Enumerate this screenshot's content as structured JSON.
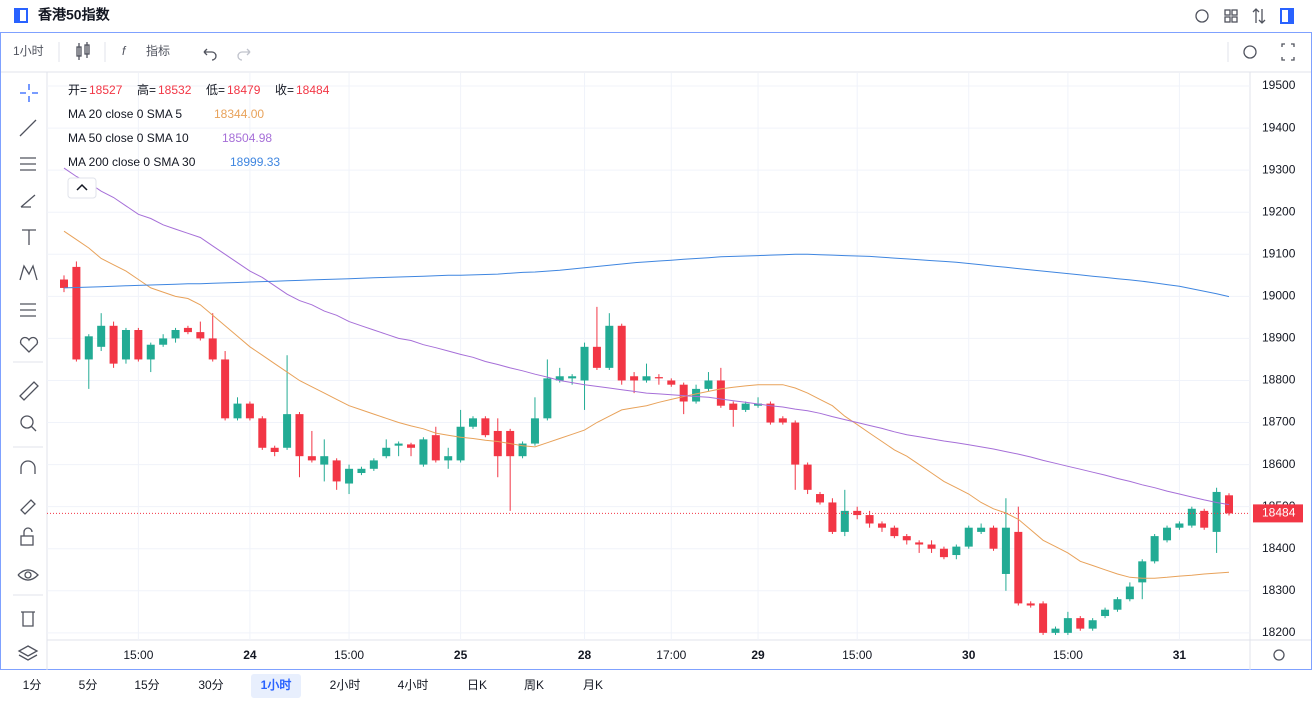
{
  "header": {
    "title": "香港50指数"
  },
  "toolbar": {
    "interval": "1小时",
    "indicators": "指标"
  },
  "intervals": [
    "1分",
    "5分",
    "15分",
    "30分",
    "1小时",
    "2小时",
    "4小时",
    "日K",
    "周K",
    "月K"
  ],
  "active_interval": 4,
  "chart_data": {
    "type": "candlestick",
    "legend_labels": [
      "开=",
      "高=",
      "低=",
      "收="
    ],
    "categories": [
      null,
      null,
      null,
      null,
      null,
      null,
      "15:00",
      null,
      null,
      null,
      null,
      null,
      null,
      null,
      null,
      "24",
      null,
      null,
      null,
      null,
      null,
      null,
      null,
      "15:00",
      null,
      null,
      null,
      null,
      null,
      null,
      null,
      null,
      "25",
      null,
      null,
      null,
      null,
      null,
      null,
      null,
      null,
      null,
      "28",
      null,
      null,
      null,
      null,
      null,
      null,
      "17:00",
      null,
      null,
      null,
      null,
      null,
      null,
      "29",
      null,
      null,
      null,
      null,
      null,
      null,
      null,
      "15:00",
      null,
      null,
      null,
      null,
      null,
      null,
      null,
      null,
      "30",
      null,
      null,
      null,
      null,
      null,
      null,
      null,
      "15:00",
      null,
      null,
      null,
      null,
      null,
      null,
      null,
      null,
      "31",
      null,
      null,
      null,
      null
    ],
    "open": [
      19040,
      19070,
      18850,
      18880,
      18930,
      18850,
      18920,
      18850,
      18885,
      18900,
      18925,
      18915,
      18900,
      18850,
      18710,
      18745,
      18710,
      18640,
      18640,
      18720,
      18620,
      18600,
      18610,
      18555,
      18580,
      18590,
      18620,
      18645,
      18648,
      18600,
      18670,
      18610,
      18610,
      18690,
      18710,
      18680,
      18680,
      18620,
      18650,
      18710,
      18800,
      18805,
      18800,
      18880,
      18830,
      18930,
      18810,
      18800,
      18808,
      18800,
      18790,
      18750,
      18780,
      18800,
      18745,
      18730,
      18740,
      18745,
      18710,
      18700,
      18600,
      18530,
      18510,
      18440,
      18490,
      18480,
      18460,
      18450,
      18430,
      18415,
      18410,
      18400,
      18385,
      18405,
      18440,
      18450,
      18340,
      18440,
      18270,
      18270,
      18200,
      18200,
      18235,
      18210,
      18240,
      18255,
      18280,
      18320,
      18370,
      18420,
      18450,
      18455,
      18490,
      18440,
      18527
    ],
    "high": [
      19050,
      19083,
      18910,
      18960,
      18940,
      18925,
      18925,
      18890,
      18910,
      18925,
      18930,
      18940,
      18960,
      18870,
      18760,
      18750,
      18715,
      18645,
      18860,
      18725,
      18680,
      18660,
      18615,
      18600,
      18595,
      18615,
      18660,
      18655,
      18652,
      18665,
      18690,
      18640,
      18730,
      18715,
      18715,
      18710,
      18685,
      18655,
      18760,
      18850,
      18830,
      18815,
      18890,
      18975,
      18960,
      18935,
      18820,
      18840,
      18815,
      18805,
      18795,
      18790,
      18820,
      18830,
      18750,
      18750,
      18760,
      18750,
      18715,
      18705,
      18605,
      18535,
      18520,
      18540,
      18500,
      18490,
      18465,
      18455,
      18435,
      18420,
      18420,
      18405,
      18410,
      18455,
      18460,
      18455,
      18520,
      18500,
      18275,
      18275,
      18215,
      18250,
      18240,
      18235,
      18260,
      18285,
      18320,
      18375,
      18435,
      18455,
      18465,
      18500,
      18495,
      18545,
      18532
    ],
    "low": [
      19010,
      18845,
      18780,
      18870,
      18830,
      18840,
      18845,
      18820,
      18880,
      18890,
      18910,
      18895,
      18845,
      18705,
      18705,
      18705,
      18635,
      18620,
      18635,
      18570,
      18605,
      18560,
      18540,
      18530,
      18575,
      18585,
      18615,
      18620,
      18620,
      18595,
      18605,
      18590,
      18605,
      18685,
      18665,
      18570,
      18490,
      18615,
      18645,
      18705,
      18795,
      18790,
      18730,
      18825,
      18825,
      18790,
      18770,
      18795,
      18790,
      18785,
      18720,
      18745,
      18775,
      18735,
      18690,
      18725,
      18735,
      18695,
      18695,
      18540,
      18530,
      18505,
      18435,
      18430,
      18470,
      18450,
      18440,
      18425,
      18410,
      18390,
      18390,
      18375,
      18375,
      18400,
      18435,
      18395,
      18300,
      18265,
      18260,
      18195,
      18195,
      18195,
      18205,
      18205,
      18235,
      18250,
      18275,
      18280,
      18365,
      18415,
      18445,
      18450,
      18445,
      18390,
      18479
    ],
    "close": [
      19020,
      18850,
      18905,
      18930,
      18840,
      18920,
      18850,
      18885,
      18900,
      18920,
      18915,
      18900,
      18850,
      18710,
      18745,
      18710,
      18640,
      18630,
      18720,
      18620,
      18610,
      18620,
      18560,
      18590,
      18590,
      18610,
      18640,
      18650,
      18640,
      18660,
      18610,
      18620,
      18690,
      18710,
      18670,
      18620,
      18620,
      18650,
      18710,
      18805,
      18810,
      18810,
      18880,
      18830,
      18930,
      18800,
      18800,
      18810,
      18805,
      18790,
      18750,
      18780,
      18800,
      18740,
      18730,
      18745,
      18745,
      18700,
      18700,
      18600,
      18540,
      18510,
      18440,
      18490,
      18480,
      18460,
      18450,
      18430,
      18420,
      18410,
      18400,
      18380,
      18405,
      18450,
      18450,
      18400,
      18450,
      18270,
      18265,
      18200,
      18210,
      18235,
      18210,
      18230,
      18255,
      18280,
      18310,
      18370,
      18430,
      18450,
      18460,
      18495,
      18450,
      18535,
      18484
    ],
    "up_color": "#22ab94",
    "down_color": "#f23645",
    "series": [
      {
        "name": "MA 20 close 0 SMA 5",
        "color": "#e8a25a",
        "last_label": "18344.00",
        "values": [
          19155,
          19135,
          19115,
          19090,
          19075,
          19060,
          19040,
          19020,
          19010,
          19000,
          18995,
          18980,
          18955,
          18930,
          18905,
          18880,
          18860,
          18840,
          18820,
          18800,
          18785,
          18770,
          18755,
          18740,
          18730,
          18720,
          18710,
          18700,
          18692,
          18685,
          18675,
          18670,
          18665,
          18662,
          18658,
          18655,
          18650,
          18645,
          18642,
          18652,
          18662,
          18672,
          18682,
          18700,
          18715,
          18730,
          18735,
          18740,
          18748,
          18755,
          18762,
          18768,
          18774,
          18780,
          18784,
          18787,
          18790,
          18790,
          18790,
          18782,
          18770,
          18755,
          18740,
          18715,
          18695,
          18675,
          18655,
          18635,
          18620,
          18600,
          18580,
          18560,
          18545,
          18530,
          18510,
          18495,
          18485,
          18470,
          18445,
          18420,
          18405,
          18390,
          18370,
          18360,
          18350,
          18340,
          18332,
          18330,
          18330,
          18332,
          18335,
          18337,
          18340,
          18342,
          18344
        ]
      },
      {
        "name": "MA 50 close 0 SMA 10",
        "color": "#a66fd8",
        "last_label": "18504.98",
        "values": [
          19305,
          19285,
          19270,
          19250,
          19235,
          19215,
          19195,
          19185,
          19170,
          19160,
          19150,
          19140,
          19120,
          19100,
          19080,
          19060,
          19045,
          19025,
          19005,
          18990,
          18980,
          18965,
          18955,
          18940,
          18930,
          18920,
          18910,
          18900,
          18895,
          18885,
          18878,
          18870,
          18862,
          18855,
          18845,
          18838,
          18830,
          18823,
          18815,
          18808,
          18800,
          18795,
          18790,
          18786,
          18782,
          18778,
          18774,
          18770,
          18768,
          18766,
          18764,
          18762,
          18760,
          18756,
          18752,
          18748,
          18744,
          18740,
          18737,
          18732,
          18728,
          18722,
          18714,
          18707,
          18700,
          18693,
          18686,
          18678,
          18671,
          18666,
          18661,
          18656,
          18652,
          18647,
          18642,
          18637,
          18631,
          18625,
          18618,
          18610,
          18603,
          18596,
          18589,
          18582,
          18575,
          18567,
          18560,
          18552,
          18545,
          18537,
          18530,
          18523,
          18516,
          18510,
          18504.98
        ]
      },
      {
        "name": "MA 200 close 0 SMA 30",
        "color": "#3f86e0",
        "last_label": "18999.33",
        "values": [
          19020,
          19021,
          19022,
          19023,
          19024,
          19025,
          19026,
          19027,
          19028,
          19029,
          19030,
          19030,
          19031,
          19032,
          19033,
          19034,
          19035,
          19036,
          19037,
          19038,
          19039,
          19040,
          19041,
          19042,
          19043,
          19044,
          19045,
          19046,
          19047,
          19048,
          19049,
          19050,
          19050,
          19051,
          19052,
          19053,
          19055,
          19057,
          19058,
          19060,
          19062,
          19065,
          19068,
          19071,
          19074,
          19077,
          19080,
          19082,
          19084,
          19086,
          19088,
          19090,
          19092,
          19094,
          19095,
          19096,
          19097,
          19098,
          19099,
          19100,
          19100,
          19099,
          19098,
          19097,
          19096,
          19095,
          19093,
          19091,
          19089,
          19087,
          19085,
          19083,
          19081,
          19078,
          19075,
          19072,
          19069,
          19066,
          19063,
          19060,
          19057,
          19054,
          19051,
          19048,
          19045,
          19042,
          19039,
          19036,
          19032,
          19028,
          19024,
          19018,
          19012,
          19006,
          18999.33
        ]
      }
    ],
    "ylim": [
      18183,
      19531
    ],
    "yticks": [
      18200,
      18300,
      18400,
      18500,
      18600,
      18700,
      18800,
      18900,
      19000,
      19100,
      19200,
      19300,
      19400,
      19500
    ],
    "grid": true
  }
}
